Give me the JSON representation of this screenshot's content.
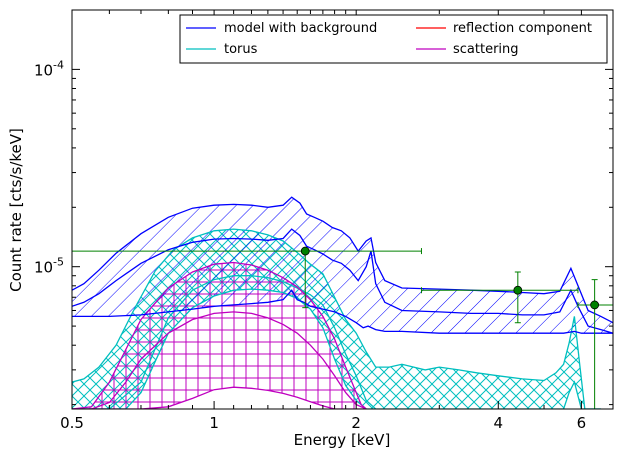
{
  "chart_data": {
    "type": "line",
    "title": "",
    "xlabel": "Energy [keV]",
    "ylabel": "Count rate [cts/s/keV]",
    "x_scale": "log",
    "y_scale": "log",
    "xlim": [
      0.5,
      7.0
    ],
    "ylim": [
      1.9e-06,
      0.0002
    ],
    "x_ticks": [
      0.5,
      1,
      2,
      4,
      6
    ],
    "x_tick_labels": [
      "0.5",
      "1",
      "2",
      "4",
      "6"
    ],
    "y_ticks": [
      1e-05,
      0.0001
    ],
    "y_tick_base": "10",
    "y_tick_exponents": [
      "-5",
      "-4"
    ],
    "legend": {
      "position": "top-right",
      "columns": 2,
      "entries": [
        {
          "label": "model with background",
          "color": "#0000ff"
        },
        {
          "label": "reflection component",
          "color": "#ff0000"
        },
        {
          "label": "torus",
          "color": "#00bfbf"
        },
        {
          "label": "scattering",
          "color": "#bf00bf"
        }
      ]
    },
    "series": [
      {
        "name": "model with background",
        "color": "#0000ff",
        "upper": {
          "x": [
            0.5,
            0.53,
            0.57,
            0.62,
            0.7,
            0.8,
            0.9,
            1.0,
            1.1,
            1.2,
            1.3,
            1.4,
            1.46,
            1.52,
            1.57,
            1.63,
            1.7,
            1.78,
            1.86,
            1.94,
            2.02,
            2.1,
            2.15,
            2.2,
            2.3,
            2.5,
            3.0,
            3.5,
            4.0,
            4.5,
            5.0,
            5.4,
            5.7,
            5.9,
            6.2,
            6.6,
            7.0
          ],
          "y": [
            7.6e-06,
            8.2e-06,
            9.6e-06,
            1.17e-05,
            1.47e-05,
            1.78e-05,
            1.98e-05,
            2.05e-05,
            2.07e-05,
            2.05e-05,
            2e-05,
            2.05e-05,
            2.25e-05,
            2.1e-05,
            1.85e-05,
            1.78e-05,
            1.7e-05,
            1.58e-05,
            1.52e-05,
            1.4e-05,
            1.2e-05,
            1.35e-05,
            1.4e-05,
            1.05e-05,
            8.5e-06,
            7.8e-06,
            7.7e-06,
            7.6e-06,
            7.5e-06,
            7.4e-06,
            7.3e-06,
            7.5e-06,
            9.8e-06,
            8e-06,
            6e-06,
            5.6e-06,
            5.2e-06
          ]
        },
        "lower": {
          "x": [
            0.5,
            0.55,
            0.6,
            0.7,
            0.8,
            0.9,
            1.0,
            1.1,
            1.2,
            1.3,
            1.4,
            1.46,
            1.5,
            1.55,
            1.6,
            1.7,
            1.8,
            1.9,
            2.0,
            2.07,
            2.12,
            2.2,
            2.3,
            2.5,
            3.0,
            3.5,
            4.0,
            4.5,
            5.0,
            5.5,
            5.8,
            6.0,
            6.3,
            7.0
          ],
          "y": [
            5.6e-06,
            5.6e-06,
            5.6e-06,
            5.7e-06,
            5.9e-06,
            6.1e-06,
            6.3e-06,
            6.4e-06,
            6.5e-06,
            6.6e-06,
            6.8e-06,
            7.6e-06,
            6.8e-06,
            6.6e-06,
            6.3e-06,
            6.1e-06,
            5.9e-06,
            5.6e-06,
            5.2e-06,
            4.9e-06,
            5e-06,
            4.8e-06,
            4.7e-06,
            4.7e-06,
            4.6e-06,
            4.6e-06,
            4.6e-06,
            4.6e-06,
            4.6e-06,
            4.6e-06,
            4.7e-06,
            4.6e-06,
            4.6e-06,
            4.6e-06
          ]
        },
        "mid": {
          "x": [
            0.5,
            0.53,
            0.57,
            0.62,
            0.7,
            0.8,
            0.9,
            1.0,
            1.1,
            1.2,
            1.3,
            1.4,
            1.46,
            1.52,
            1.57,
            1.63,
            1.7,
            1.78,
            1.86,
            1.94,
            2.02,
            2.1,
            2.15,
            2.2,
            2.3,
            2.5,
            3.0,
            3.5,
            4.0,
            4.5,
            5.0,
            5.4,
            5.7,
            5.9,
            6.2,
            6.6,
            7.0
          ],
          "y": [
            6.3e-06,
            6.6e-06,
            7.3e-06,
            8.5e-06,
            1.04e-05,
            1.22e-05,
            1.33e-05,
            1.38e-05,
            1.39e-05,
            1.38e-05,
            1.36e-05,
            1.39e-05,
            1.55e-05,
            1.44e-05,
            1.27e-05,
            1.22e-05,
            1.16e-05,
            1.08e-05,
            1.04e-05,
            9.6e-06,
            8.5e-06,
            1e-05,
            1.2e-05,
            8.2e-06,
            6.6e-06,
            6e-06,
            5.9e-06,
            5.8e-06,
            5.8e-06,
            5.7e-06,
            5.7e-06,
            5.9e-06,
            7.6e-06,
            6.3e-06,
            5e-06,
            4.8e-06,
            4.6e-06
          ]
        }
      },
      {
        "name": "torus",
        "color": "#00bfbf",
        "upper": {
          "x": [
            0.5,
            0.53,
            0.57,
            0.62,
            0.68,
            0.75,
            0.82,
            0.9,
            1.0,
            1.1,
            1.2,
            1.3,
            1.4,
            1.5,
            1.6,
            1.7,
            1.8,
            1.9,
            2.0,
            2.1,
            2.2,
            2.35,
            2.5,
            2.8,
            3.0,
            3.3,
            3.6,
            4.0,
            4.5,
            5.0,
            5.3,
            5.5,
            5.65,
            5.8,
            5.95,
            6.1,
            6.3,
            6.6
          ],
          "y": [
            2.6e-06,
            2.7e-06,
            3.1e-06,
            4e-06,
            6.2e-06,
            9.5e-06,
            1.22e-05,
            1.4e-05,
            1.52e-05,
            1.55e-05,
            1.52e-05,
            1.45e-05,
            1.35e-05,
            1.18e-05,
            1.03e-05,
            9.2e-06,
            7e-06,
            5.4e-06,
            4.6e-06,
            3.7e-06,
            3.1e-06,
            3.1e-06,
            3.2e-06,
            3e-06,
            3.1e-06,
            3e-06,
            2.9e-06,
            2.8e-06,
            2.7e-06,
            2.65e-06,
            2.9e-06,
            3.2e-06,
            4.1e-06,
            5.6e-06,
            3.2e-06,
            1.9e-06,
            1.9e-06,
            1.9e-06
          ]
        },
        "lower": {
          "x": [
            0.5,
            0.55,
            0.6,
            0.65,
            0.7,
            0.75,
            0.8,
            0.9,
            1.0,
            1.1,
            1.2,
            1.3,
            1.4,
            1.5,
            1.6,
            1.7,
            1.8,
            1.9,
            2.0,
            2.1,
            2.2,
            2.5,
            3.0,
            3.5,
            4.0,
            4.5,
            5.0,
            5.5,
            5.65,
            5.8,
            6.0,
            6.6
          ],
          "y": [
            1.9e-06,
            1.9e-06,
            1.9e-06,
            1.9e-06,
            2.3e-06,
            3.3e-06,
            4.6e-06,
            6.2e-06,
            7.1e-06,
            7.6e-06,
            7.7e-06,
            7.6e-06,
            7.4e-06,
            6.9e-06,
            6.1e-06,
            4.9e-06,
            3.4e-06,
            2.5e-06,
            2.1e-06,
            1.9e-06,
            1.9e-06,
            1.9e-06,
            1.9e-06,
            1.9e-06,
            1.9e-06,
            1.9e-06,
            1.9e-06,
            1.9e-06,
            2.3e-06,
            2.6e-06,
            1.9e-06,
            1.9e-06
          ]
        },
        "mid": {
          "x": [
            0.5,
            0.6,
            0.7,
            0.8,
            0.9,
            1.0,
            1.1,
            1.2,
            1.3,
            1.4,
            1.5,
            1.6,
            1.7,
            1.8,
            1.9,
            2.0,
            2.1,
            2.2
          ],
          "y": [
            1.9e-06,
            1.9e-06,
            2.6e-06,
            5.5e-06,
            7.6e-06,
            8.6e-06,
            9e-06,
            9e-06,
            8.8e-06,
            8.4e-06,
            7.8e-06,
            7.2e-06,
            6.4e-06,
            4.9e-06,
            3.6e-06,
            2.8e-06,
            2.1e-06,
            1.9e-06
          ]
        }
      },
      {
        "name": "scattering",
        "color": "#bf00bf",
        "upper": {
          "x": [
            0.5,
            0.55,
            0.6,
            0.65,
            0.7,
            0.8,
            0.9,
            1.0,
            1.1,
            1.2,
            1.3,
            1.4,
            1.5,
            1.6,
            1.7,
            1.8,
            1.9,
            2.0,
            2.05,
            2.1
          ],
          "y": [
            1.9e-06,
            1.95e-06,
            2.6e-06,
            3.8e-06,
            5.4e-06,
            7.8e-06,
            9.4e-06,
            1.03e-05,
            1.05e-05,
            1.02e-05,
            9.6e-06,
            8.8e-06,
            7.9e-06,
            6.8e-06,
            5.6e-06,
            4.3e-06,
            3.1e-06,
            2.3e-06,
            2e-06,
            1.9e-06
          ]
        },
        "lower": {
          "x": [
            0.5,
            0.55,
            0.6,
            0.7,
            0.8,
            0.9,
            1.0,
            1.1,
            1.2,
            1.3,
            1.4,
            1.5,
            1.6,
            1.7,
            1.8,
            1.9,
            2.0,
            2.1
          ],
          "y": [
            1.9e-06,
            1.9e-06,
            1.9e-06,
            1.9e-06,
            1.95e-06,
            2.15e-06,
            2.38e-06,
            2.45e-06,
            2.42e-06,
            2.36e-06,
            2.28e-06,
            2.18e-06,
            2.07e-06,
            1.97e-06,
            1.9e-06,
            1.9e-06,
            1.9e-06,
            1.9e-06
          ]
        },
        "mid": {
          "x": [
            0.5,
            0.55,
            0.6,
            0.65,
            0.7,
            0.8,
            0.9,
            1.0,
            1.1,
            1.2,
            1.3,
            1.4,
            1.5,
            1.6,
            1.7,
            1.8,
            1.9,
            2.0,
            2.1
          ],
          "y": [
            1.9e-06,
            1.9e-06,
            2.05e-06,
            2.6e-06,
            3.4e-06,
            4.6e-06,
            5.4e-06,
            5.8e-06,
            5.9e-06,
            5.8e-06,
            5.5e-06,
            5.1e-06,
            4.6e-06,
            4e-06,
            3.4e-06,
            2.8e-06,
            2.3e-06,
            2e-06,
            1.9e-06
          ]
        }
      }
    ],
    "data_points": {
      "color": "#008000",
      "points": [
        {
          "x": 1.56,
          "y": 1.2e-05,
          "xerr": [
            0.5,
            2.75
          ],
          "yerr": [
            6.2e-06,
            1.2e-05
          ]
        },
        {
          "x": 4.4,
          "y": 7.6e-06,
          "xerr": [
            2.75,
            5.9
          ],
          "yerr": [
            5.2e-06,
            9.4e-06
          ]
        },
        {
          "x": 6.4,
          "y": 6.4e-06,
          "xerr": [
            5.9,
            7.0
          ],
          "yerr": [
            1.9e-06,
            8.6e-06
          ]
        }
      ]
    }
  }
}
